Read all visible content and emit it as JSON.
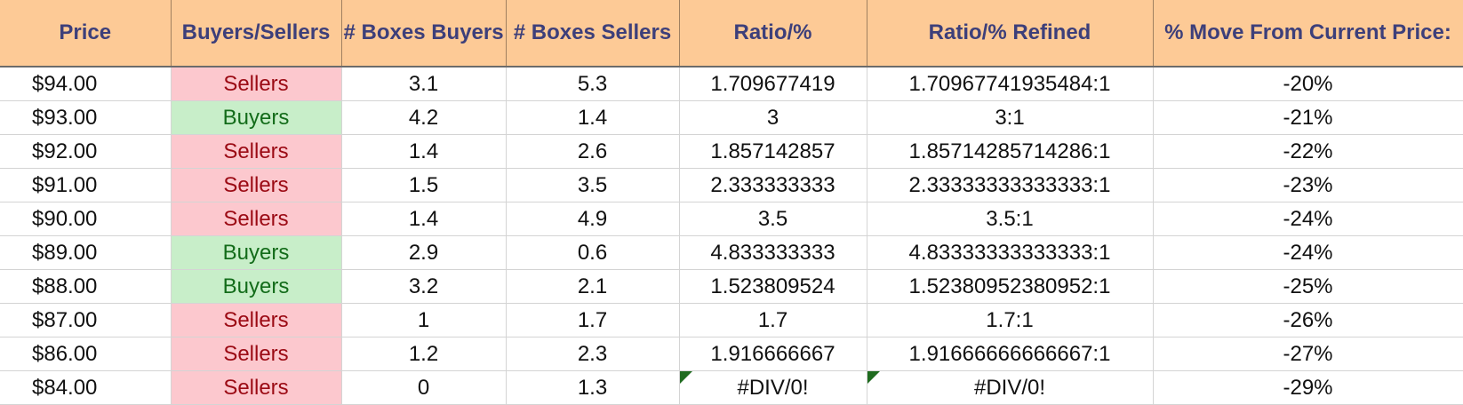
{
  "columns": [
    "Price",
    "Buyers/Sellers",
    "# Boxes Buyers",
    "# Boxes Sellers",
    "Ratio/%",
    "Ratio/% Refined",
    "% Move From Current Price:"
  ],
  "rows": [
    {
      "price": "$94.00",
      "side": "Sellers",
      "boxes_buyers": "3.1",
      "boxes_sellers": "5.3",
      "ratio": "1.709677419",
      "ratio_refined": "1.70967741935484:1",
      "move": "-20%",
      "error_flag": false
    },
    {
      "price": "$93.00",
      "side": "Buyers",
      "boxes_buyers": "4.2",
      "boxes_sellers": "1.4",
      "ratio": "3",
      "ratio_refined": "3:1",
      "move": "-21%",
      "error_flag": false
    },
    {
      "price": "$92.00",
      "side": "Sellers",
      "boxes_buyers": "1.4",
      "boxes_sellers": "2.6",
      "ratio": "1.857142857",
      "ratio_refined": "1.85714285714286:1",
      "move": "-22%",
      "error_flag": false
    },
    {
      "price": "$91.00",
      "side": "Sellers",
      "boxes_buyers": "1.5",
      "boxes_sellers": "3.5",
      "ratio": "2.333333333",
      "ratio_refined": "2.33333333333333:1",
      "move": "-23%",
      "error_flag": false
    },
    {
      "price": "$90.00",
      "side": "Sellers",
      "boxes_buyers": "1.4",
      "boxes_sellers": "4.9",
      "ratio": "3.5",
      "ratio_refined": "3.5:1",
      "move": "-24%",
      "error_flag": false
    },
    {
      "price": "$89.00",
      "side": "Buyers",
      "boxes_buyers": "2.9",
      "boxes_sellers": "0.6",
      "ratio": "4.833333333",
      "ratio_refined": "4.83333333333333:1",
      "move": "-24%",
      "error_flag": false
    },
    {
      "price": "$88.00",
      "side": "Buyers",
      "boxes_buyers": "3.2",
      "boxes_sellers": "2.1",
      "ratio": "1.523809524",
      "ratio_refined": "1.52380952380952:1",
      "move": "-25%",
      "error_flag": false
    },
    {
      "price": "$87.00",
      "side": "Sellers",
      "boxes_buyers": "1",
      "boxes_sellers": "1.7",
      "ratio": "1.7",
      "ratio_refined": "1.7:1",
      "move": "-26%",
      "error_flag": false
    },
    {
      "price": "$86.00",
      "side": "Sellers",
      "boxes_buyers": "1.2",
      "boxes_sellers": "2.3",
      "ratio": "1.916666667",
      "ratio_refined": "1.91666666666667:1",
      "move": "-27%",
      "error_flag": false
    },
    {
      "price": "$84.00",
      "side": "Sellers",
      "boxes_buyers": "0",
      "boxes_sellers": "1.3",
      "ratio": "#DIV/0!",
      "ratio_refined": "#DIV/0!",
      "move": "-29%",
      "error_flag": true
    }
  ],
  "colors": {
    "header_bg": "#fdca96",
    "header_text": "#3d3f7a",
    "sellers_bg": "#fcc8ce",
    "sellers_text": "#9b0a14",
    "buyers_bg": "#c8eec9",
    "buyers_text": "#136c1a",
    "error_flag": "#1f6b1f"
  }
}
